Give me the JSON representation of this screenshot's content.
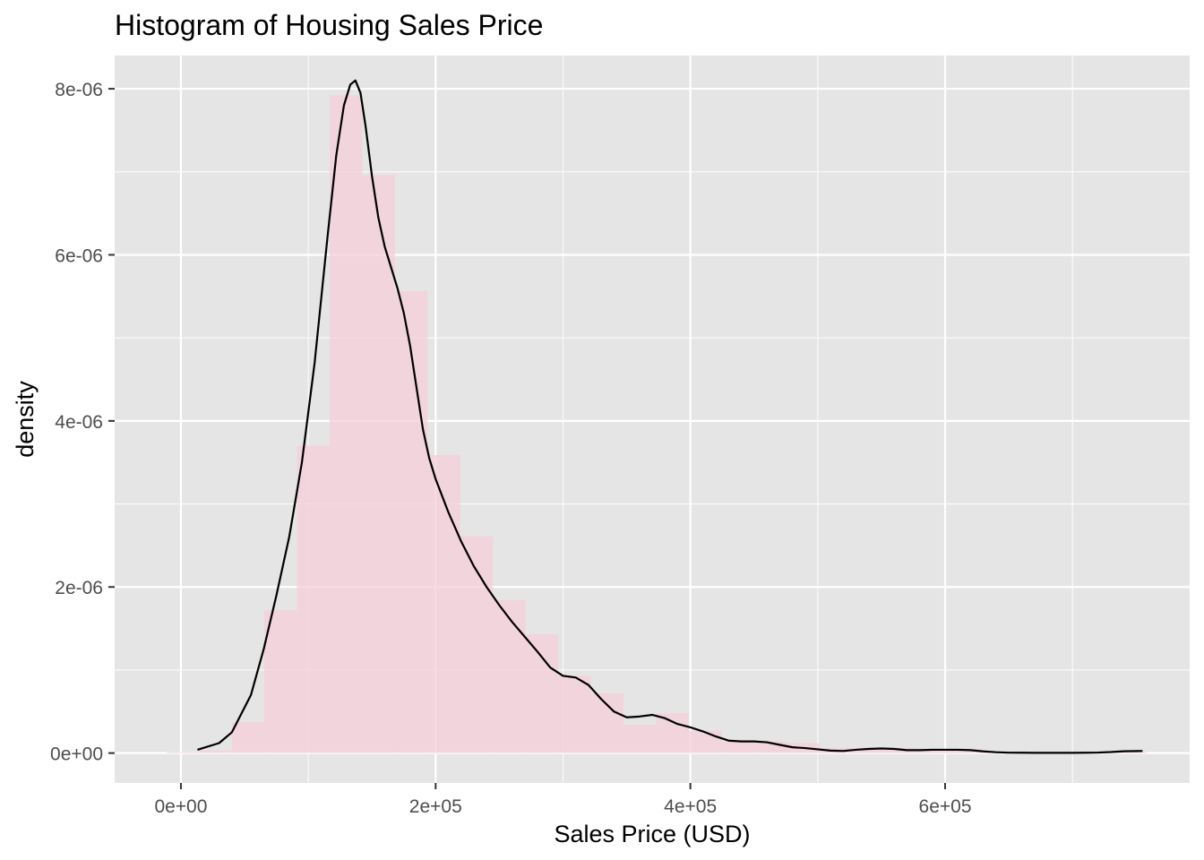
{
  "chart_data": {
    "type": "histogram",
    "title": "Histogram of Housing Sales Price",
    "xlabel": "Sales Price (USD)",
    "ylabel": "density",
    "xlim": [
      -52000,
      792000
    ],
    "ylim": [
      -3.6e-07,
      8.4e-06
    ],
    "x_ticks": [
      {
        "value": 0,
        "label": "0e+00"
      },
      {
        "value": 200000,
        "label": "2e+05"
      },
      {
        "value": 400000,
        "label": "4e+05"
      },
      {
        "value": 600000,
        "label": "6e+05"
      }
    ],
    "y_ticks": [
      {
        "value": 0,
        "label": "0e+00"
      },
      {
        "value": 2e-06,
        "label": "2e-06"
      },
      {
        "value": 4e-06,
        "label": "4e-06"
      },
      {
        "value": 6e-06,
        "label": "6e-06"
      },
      {
        "value": 8e-06,
        "label": "8e-06"
      }
    ],
    "grid": true,
    "bin_width": 25630,
    "bins": [
      {
        "x0": -11350,
        "density": 1e-08
      },
      {
        "x0": 14280,
        "density": 3e-08
      },
      {
        "x0": 39910,
        "density": 3.7e-07
      },
      {
        "x0": 65540,
        "density": 1.72e-06
      },
      {
        "x0": 91170,
        "density": 3.7e-06
      },
      {
        "x0": 116800,
        "density": 7.92e-06
      },
      {
        "x0": 142430,
        "density": 6.96e-06
      },
      {
        "x0": 168060,
        "density": 5.56e-06
      },
      {
        "x0": 193690,
        "density": 3.59e-06
      },
      {
        "x0": 219320,
        "density": 2.61e-06
      },
      {
        "x0": 244950,
        "density": 1.84e-06
      },
      {
        "x0": 270580,
        "density": 1.43e-06
      },
      {
        "x0": 296210,
        "density": 9.3e-07
      },
      {
        "x0": 321840,
        "density": 7.2e-07
      },
      {
        "x0": 347470,
        "density": 3.4e-07
      },
      {
        "x0": 373100,
        "density": 4.8e-07
      },
      {
        "x0": 398730,
        "density": 2.7e-07
      },
      {
        "x0": 424360,
        "density": 1.4e-07
      },
      {
        "x0": 449990,
        "density": 1.4e-07
      },
      {
        "x0": 475620,
        "density": 1.2e-07
      },
      {
        "x0": 501250,
        "density": 6e-08
      },
      {
        "x0": 526880,
        "density": 4e-08
      },
      {
        "x0": 552510,
        "density": 6e-08
      },
      {
        "x0": 578140,
        "density": 3e-08
      },
      {
        "x0": 603770,
        "density": 5e-08
      },
      {
        "x0": 629400,
        "density": 2e-08
      },
      {
        "x0": 655030,
        "density": 1e-08
      },
      {
        "x0": 680660,
        "density": 1e-08
      },
      {
        "x0": 706290,
        "density": 1e-08
      },
      {
        "x0": 731920,
        "density": 2e-08
      }
    ],
    "density_curve": {
      "x": [
        13000,
        30000,
        40000,
        55000,
        65000,
        75000,
        85000,
        95000,
        105000,
        115000,
        122000,
        128000,
        133000,
        137000,
        141000,
        145000,
        150000,
        155000,
        160000,
        165000,
        170000,
        175000,
        180000,
        185000,
        190000,
        195000,
        200000,
        210000,
        220000,
        230000,
        240000,
        250000,
        260000,
        270000,
        280000,
        290000,
        300000,
        310000,
        320000,
        330000,
        340000,
        350000,
        360000,
        370000,
        380000,
        390000,
        400000,
        410000,
        420000,
        430000,
        440000,
        450000,
        460000,
        470000,
        480000,
        490000,
        500000,
        510000,
        520000,
        530000,
        540000,
        550000,
        560000,
        570000,
        580000,
        590000,
        600000,
        610000,
        620000,
        630000,
        640000,
        650000,
        660000,
        670000,
        680000,
        690000,
        700000,
        710000,
        720000,
        730000,
        740000,
        755000
      ],
      "y": [
        4e-08,
        1.2e-07,
        2.5e-07,
        7e-07,
        1.25e-06,
        1.9e-06,
        2.6e-06,
        3.5e-06,
        4.7e-06,
        6.2e-06,
        7.2e-06,
        7.8e-06,
        8.05e-06,
        8.1e-06,
        7.95e-06,
        7.55e-06,
        6.95e-06,
        6.45e-06,
        6.1e-06,
        5.85e-06,
        5.6e-06,
        5.3e-06,
        4.9e-06,
        4.4e-06,
        3.9e-06,
        3.55e-06,
        3.3e-06,
        2.9e-06,
        2.55e-06,
        2.25e-06,
        2e-06,
        1.78e-06,
        1.58e-06,
        1.4e-06,
        1.22e-06,
        1.03e-06,
        9.3e-07,
        9.1e-07,
        8.2e-07,
        6.5e-07,
        5e-07,
        4.3e-07,
        4.4e-07,
        4.6e-07,
        4.2e-07,
        3.5e-07,
        3.1e-07,
        2.6e-07,
        2e-07,
        1.5e-07,
        1.4e-07,
        1.4e-07,
        1.3e-07,
        1e-07,
        7e-08,
        6e-08,
        4.5e-08,
        3e-08,
        2.5e-08,
        4e-08,
        5e-08,
        5.5e-08,
        5e-08,
        3.5e-08,
        3.5e-08,
        4e-08,
        4e-08,
        4e-08,
        3.5e-08,
        2e-08,
        1e-08,
        5e-09,
        4e-09,
        3e-09,
        3e-09,
        3e-09,
        3e-09,
        4e-09,
        6e-09,
        1.2e-08,
        2.2e-08,
        2.5e-08
      ]
    },
    "colors": {
      "panel_bg": "#e5e5e5",
      "grid_major": "#ffffff",
      "bar_fill": "#f6cdd8",
      "curve": "#000000",
      "tick_text": "#4d4d4d",
      "tick_mark": "#333333"
    }
  }
}
